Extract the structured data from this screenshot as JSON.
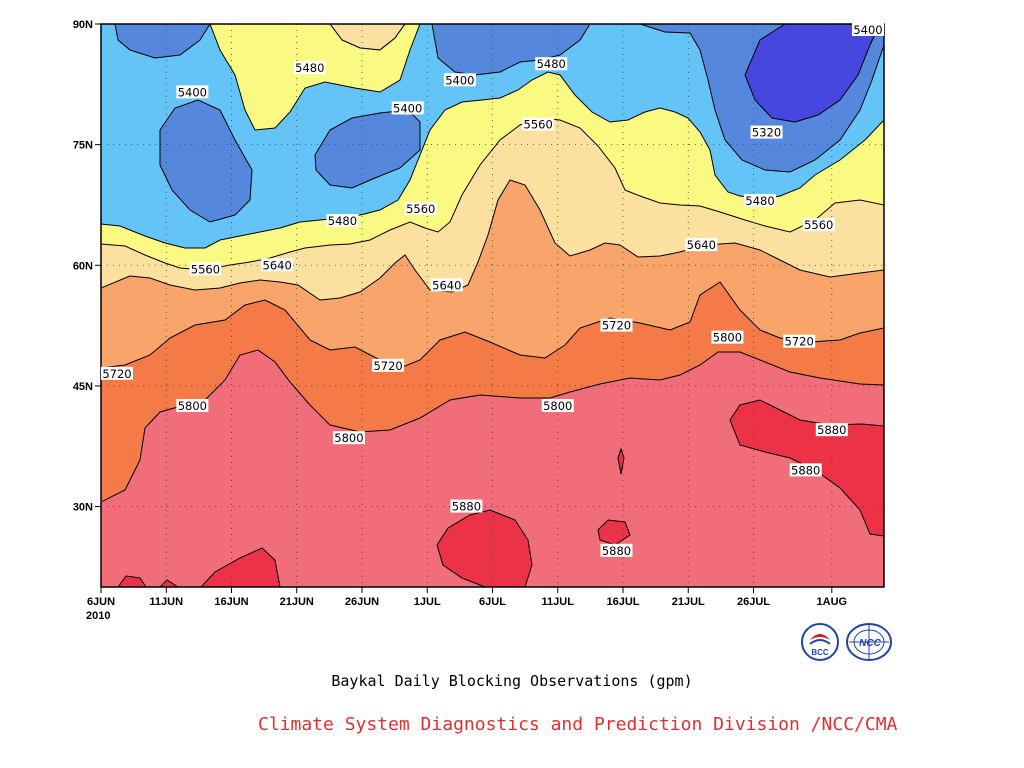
{
  "chart_data": {
    "type": "heatmap",
    "variant": "filled-contour (Hovmoller time-latitude)",
    "title": "Baykal Daily Blocking Observations (gpm)",
    "credit": "Climate System Diagnostics and Prediction Division /NCC/CMA",
    "x_ticks": [
      "6JUN",
      "11JUN",
      "16JUN",
      "21JUN",
      "26JUN",
      "1JUL",
      "6JUL",
      "11JUL",
      "16JUL",
      "21JUL",
      "26JUL",
      "1AUG"
    ],
    "x_ticks_days": [
      0,
      5,
      10,
      15,
      20,
      25,
      30,
      35,
      40,
      45,
      50,
      56
    ],
    "year_label": "2010",
    "y_ticks": [
      "90N",
      "75N",
      "60N",
      "45N",
      "30N"
    ],
    "y_ticks_values": [
      90,
      75,
      60,
      45,
      30
    ],
    "ylim": [
      20,
      90
    ],
    "x_range_days": [
      0,
      60
    ],
    "grid": "dotted",
    "levels": [
      5320,
      5400,
      5480,
      5560,
      5640,
      5720,
      5800,
      5880
    ],
    "band_colors": {
      "lt5320": "#4646e0",
      "5320_5400": "#5588dc",
      "5400_5480": "#64c4f8",
      "5480_5560": "#fafa82",
      "5560_5640": "#fce0a0",
      "5640_5720": "#f8a46a",
      "5720_5800": "#f47a48",
      "5800_5880": "#f26d7a",
      "gt5880": "#ec3247"
    },
    "contour_labels": [
      {
        "text": "5400",
        "day": 61,
        "lat": 90
      },
      {
        "text": "5480",
        "day": 16,
        "lat": 84.5
      },
      {
        "text": "5400",
        "day": 7,
        "lat": 81.5
      },
      {
        "text": "5400",
        "day": 27.5,
        "lat": 83
      },
      {
        "text": "5480",
        "day": 34.5,
        "lat": 85
      },
      {
        "text": "5400",
        "day": 23.5,
        "lat": 79.5
      },
      {
        "text": "5560",
        "day": 33.5,
        "lat": 77.5
      },
      {
        "text": "5320",
        "day": 51,
        "lat": 76.5
      },
      {
        "text": "5480",
        "day": 50.5,
        "lat": 68
      },
      {
        "text": "5480",
        "day": 18.5,
        "lat": 65.5
      },
      {
        "text": "5560",
        "day": 24.5,
        "lat": 67
      },
      {
        "text": "5560",
        "day": 55,
        "lat": 65
      },
      {
        "text": "5640",
        "day": 46,
        "lat": 62.5
      },
      {
        "text": "5560",
        "day": 8,
        "lat": 59.5
      },
      {
        "text": "5640",
        "day": 13.5,
        "lat": 60
      },
      {
        "text": "5640",
        "day": 26.5,
        "lat": 57.5
      },
      {
        "text": "5720",
        "day": 39.5,
        "lat": 52.5
      },
      {
        "text": "5720",
        "day": 53.5,
        "lat": 50.5
      },
      {
        "text": "5800",
        "day": 48,
        "lat": 51
      },
      {
        "text": "5720",
        "day": 22,
        "lat": 47.5
      },
      {
        "text": "5720",
        "day": 0,
        "lat": 46.5
      },
      {
        "text": "5800",
        "day": 7,
        "lat": 42.5
      },
      {
        "text": "5800",
        "day": 35,
        "lat": 42.5
      },
      {
        "text": "5880",
        "day": 56,
        "lat": 39.5
      },
      {
        "text": "5800",
        "day": 19,
        "lat": 38.5
      },
      {
        "text": "5880",
        "day": 54,
        "lat": 34.5
      },
      {
        "text": "5880",
        "day": 28,
        "lat": 30
      },
      {
        "text": "5880",
        "day": 39.5,
        "lat": 24.5
      }
    ]
  },
  "logos": {
    "left": {
      "name": "bcc-logo",
      "text": "BCC"
    },
    "right": {
      "name": "ncc-logo",
      "text": "NCC"
    }
  }
}
